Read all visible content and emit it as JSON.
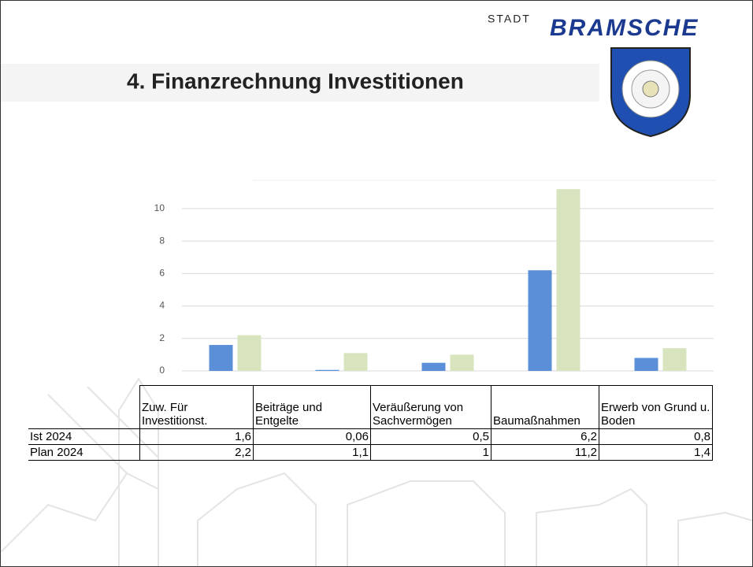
{
  "brand": {
    "prefix": "STADT",
    "name": "BRAMSCHE"
  },
  "chart_data": {
    "type": "bar",
    "title": "4. Finanzrechnung Investitionen",
    "categories": [
      "Zuw. Für Investitionst.",
      "Beiträge und Entgelte",
      "Veräußerung von Sachvermögen",
      "Baumaßnahmen",
      "Erwerb von Grund u. Boden"
    ],
    "series": [
      {
        "name": "Ist 2024",
        "color": "#5b8fd8",
        "values": [
          1.6,
          0.06,
          0.5,
          6.2,
          0.8
        ],
        "value_labels": [
          "1,6",
          "0,06",
          "0,5",
          "6,2",
          "0,8"
        ]
      },
      {
        "name": "Plan 2024",
        "color": "#d7e4be",
        "values": [
          2.2,
          1.1,
          1,
          11.2,
          1.4
        ],
        "value_labels": [
          "2,2",
          "1,1",
          "1",
          "11,2",
          "1,4"
        ]
      }
    ],
    "ylim": [
      0,
      11.5
    ],
    "yticks": [
      0,
      2,
      4,
      6,
      8,
      10
    ],
    "grid": true
  }
}
